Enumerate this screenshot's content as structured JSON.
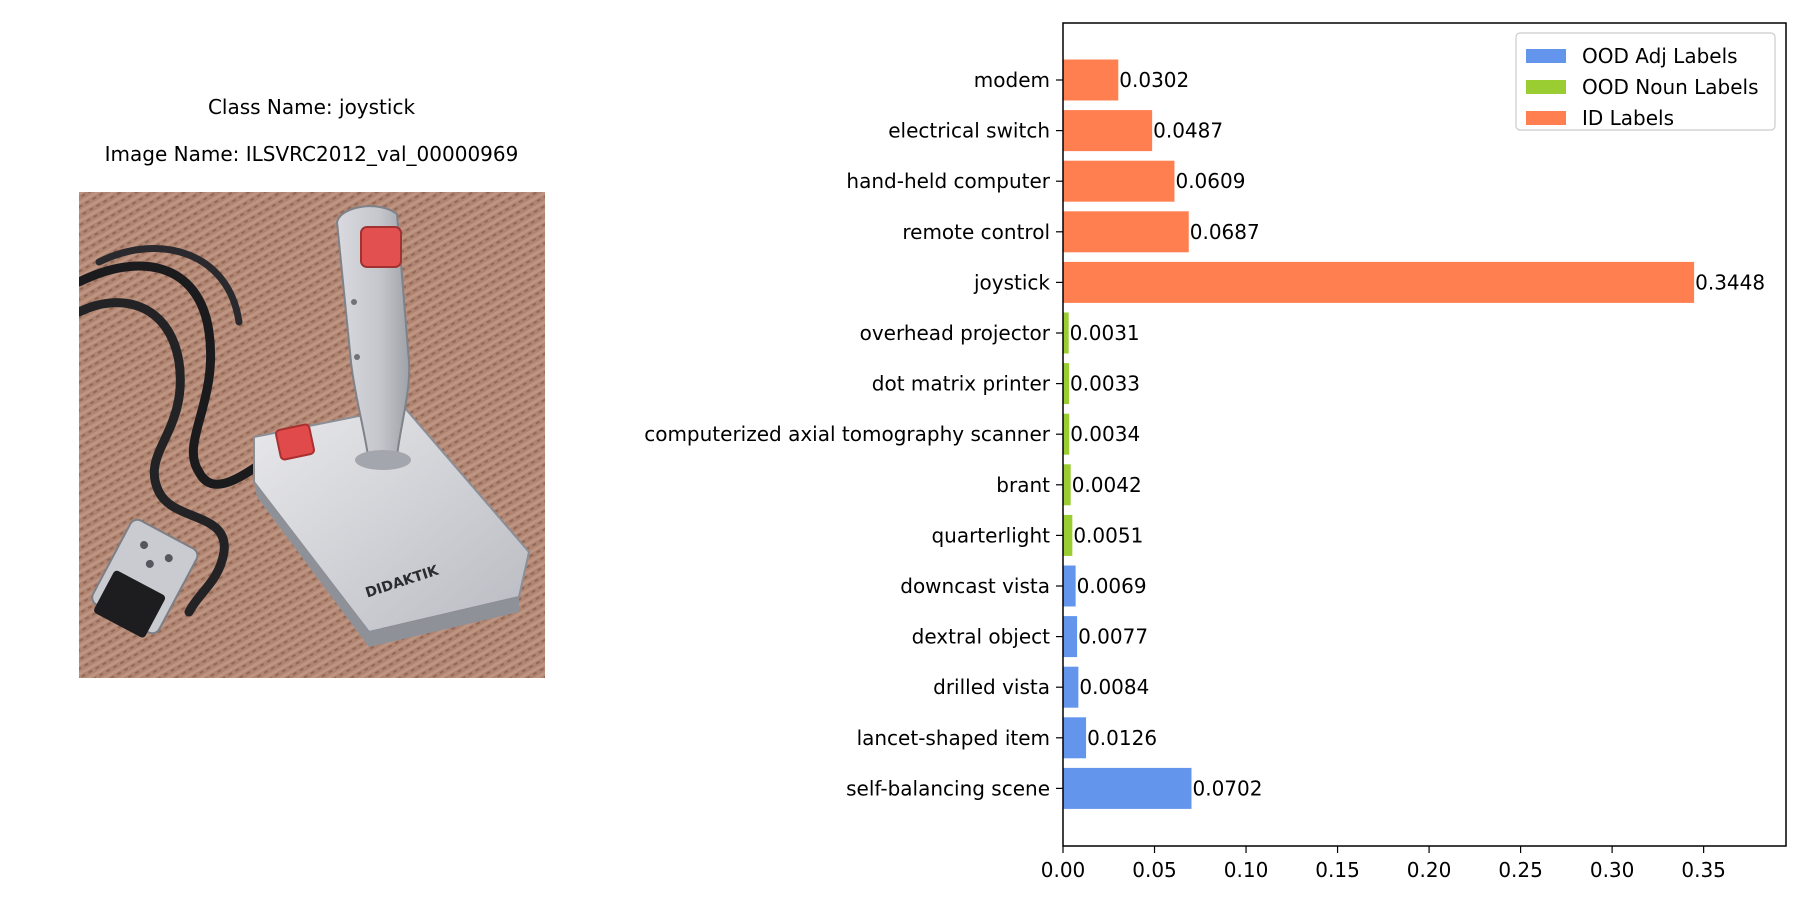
{
  "left_panel": {
    "class_caption": "Class Name: joystick",
    "image_caption": "Image Name: ILSVRC2012_val_00000969",
    "photo_brand": "DIDAKTIK"
  },
  "chart_data": {
    "type": "bar",
    "orientation": "horizontal",
    "categories": [
      "modem",
      "electrical switch",
      "hand-held computer",
      "remote control",
      "joystick",
      "overhead projector",
      "dot matrix printer",
      "computerized axial tomography scanner",
      "brant",
      "quarterlight",
      "downcast vista",
      "dextral object",
      "drilled vista",
      "lancet-shaped item",
      "self-balancing scene"
    ],
    "values": [
      0.0302,
      0.0487,
      0.0609,
      0.0687,
      0.3448,
      0.0031,
      0.0033,
      0.0034,
      0.0042,
      0.0051,
      0.0069,
      0.0077,
      0.0084,
      0.0126,
      0.0702
    ],
    "value_labels": [
      "0.0302",
      "0.0487",
      "0.0609",
      "0.0687",
      "0.3448",
      "0.0031",
      "0.0033",
      "0.0034",
      "0.0042",
      "0.0051",
      "0.0069",
      "0.0077",
      "0.0084",
      "0.0126",
      "0.0702"
    ],
    "groups": [
      "ID Labels",
      "ID Labels",
      "ID Labels",
      "ID Labels",
      "ID Labels",
      "OOD Noun Labels",
      "OOD Noun Labels",
      "OOD Noun Labels",
      "OOD Noun Labels",
      "OOD Noun Labels",
      "OOD Adj Labels",
      "OOD Adj Labels",
      "OOD Adj Labels",
      "OOD Adj Labels",
      "OOD Adj Labels"
    ],
    "legend": [
      {
        "name": "OOD Adj Labels",
        "color": "#6495ED"
      },
      {
        "name": "OOD Noun Labels",
        "color": "#9ACD32"
      },
      {
        "name": "ID Labels",
        "color": "#FF7F50"
      }
    ],
    "legend_position": "top-right",
    "xlim": [
      0,
      0.395
    ],
    "xticks": [
      0.0,
      0.05,
      0.1,
      0.15,
      0.2,
      0.25,
      0.3,
      0.35
    ],
    "xtick_labels": [
      "0.00",
      "0.05",
      "0.10",
      "0.15",
      "0.20",
      "0.25",
      "0.30",
      "0.35"
    ],
    "title": "",
    "xlabel": "",
    "ylabel": "",
    "grid": false
  }
}
